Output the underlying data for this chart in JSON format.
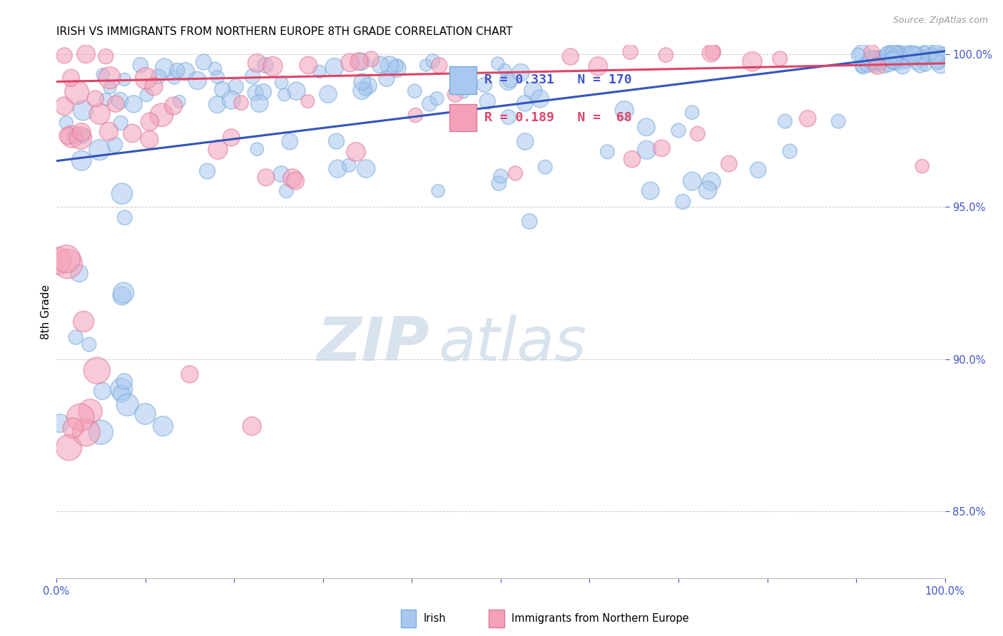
{
  "title": "IRISH VS IMMIGRANTS FROM NORTHERN EUROPE 8TH GRADE CORRELATION CHART",
  "source": "Source: ZipAtlas.com",
  "ylabel": "8th Grade",
  "legend_blue_r": "R = 0.331",
  "legend_blue_n": "N = 170",
  "legend_pink_r": "R = 0.189",
  "legend_pink_n": "N =  68",
  "watermark_part1": "ZIP",
  "watermark_part2": "atlas",
  "blue_face_color": "#A8C8F0",
  "blue_edge_color": "#7AAAD8",
  "pink_face_color": "#F4A0B8",
  "pink_edge_color": "#E07898",
  "blue_line_color": "#3355BB",
  "pink_line_color": "#DD4466",
  "blue_trend_y0": 0.965,
  "blue_trend_y1": 1.001,
  "pink_trend_y0": 0.991,
  "pink_trend_y1": 0.997,
  "xlim": [
    0.0,
    1.0
  ],
  "ylim": [
    0.828,
    1.003
  ],
  "yticks": [
    0.85,
    0.9,
    0.95,
    1.0
  ],
  "background_color": "#ffffff",
  "grid_color": "#cccccc",
  "axis_label_color": "#4455CC",
  "title_fontsize": 11,
  "scatter_alpha": 0.55,
  "scatter_linewidth": 1.2,
  "base_size": 220
}
